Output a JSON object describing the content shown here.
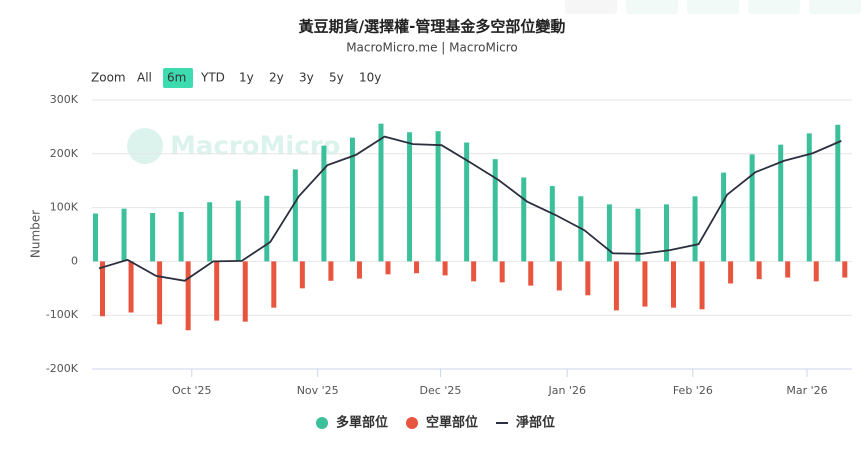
{
  "chart_data": {
    "type": "bar",
    "title": "黃豆期貨/選擇權-管理基金多空部位變動",
    "subtitle": "MacroMicro.me | MacroMicro",
    "watermark": "MacroMicro",
    "ylabel": "Number",
    "zoom_label": "Zoom",
    "range_buttons": [
      "All",
      "6m",
      "YTD",
      "1y",
      "2y",
      "3y",
      "5y",
      "10y"
    ],
    "active_range": "6m",
    "categories": [
      null,
      null,
      null,
      null,
      null,
      null,
      null,
      null,
      null,
      null,
      null,
      null,
      null,
      null,
      null,
      null,
      null,
      null,
      null,
      null,
      null,
      null,
      null,
      null,
      null,
      null,
      null
    ],
    "series": [
      {
        "name": "多單部位",
        "color": "#3cbf9b",
        "kind": "bar",
        "values": [
          89000,
          98000,
          90000,
          92000,
          110000,
          113000,
          122000,
          171000,
          215000,
          230000,
          256000,
          240000,
          242000,
          221000,
          190000,
          156000,
          140000,
          121000,
          106000,
          98000,
          106000,
          121000,
          165000,
          199000,
          217000,
          238000,
          254000
        ]
      },
      {
        "name": "空單部位",
        "color": "#e8553f",
        "kind": "bar",
        "values": [
          -102000,
          -95000,
          -117000,
          -128000,
          -110000,
          -112000,
          -86000,
          -50000,
          -36000,
          -32000,
          -24000,
          -22000,
          -26000,
          -37000,
          -39000,
          -45000,
          -54000,
          -63000,
          -91000,
          -84000,
          -86000,
          -89000,
          -41000,
          -33000,
          -30000,
          -37000,
          -30000
        ]
      },
      {
        "name": "淨部位",
        "color": "#2c2f3f",
        "kind": "line",
        "values": [
          -13000,
          3000,
          -27000,
          -36000,
          0,
          1000,
          36000,
          121000,
          179000,
          198000,
          232000,
          218000,
          216000,
          184000,
          151000,
          111000,
          86000,
          58000,
          15000,
          14000,
          21000,
          32000,
          124000,
          166000,
          187000,
          201000,
          224000
        ]
      }
    ],
    "ylim": [
      -200000,
      300000
    ],
    "yticks": [
      {
        "value": -200000,
        "label": "-200K"
      },
      {
        "value": -100000,
        "label": "-100K"
      },
      0,
      {
        "value": 100000,
        "label": "100K"
      },
      {
        "value": 200000,
        "label": "200K"
      },
      {
        "value": 300000,
        "label": "300K"
      }
    ],
    "xticks": [
      {
        "value": 3.25,
        "label": "Oct '25"
      },
      {
        "value": 7.66,
        "label": "Nov '25"
      },
      {
        "value": 11.96,
        "label": "Dec '25"
      },
      {
        "value": 16.4,
        "label": "Jan '26"
      },
      {
        "value": 20.8,
        "label": "Feb '26"
      },
      {
        "value": 24.8,
        "label": "Mar '26"
      }
    ],
    "grid": true,
    "legend": "bottom"
  }
}
